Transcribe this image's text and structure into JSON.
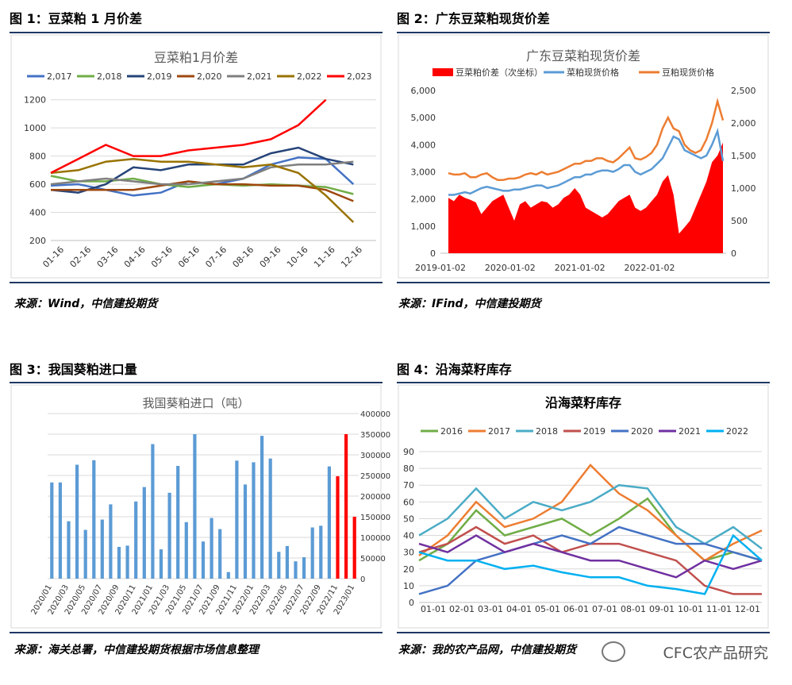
{
  "panels": [
    {
      "fig_label": "图 1：豆菜粕 1 月价差",
      "source": "来源：Wind，中信建投期货"
    },
    {
      "fig_label": "图 2：广东豆菜粕现货价差",
      "source": "来源：IFind，中信建投期货"
    },
    {
      "fig_label": "图 3：我国葵粕进口量",
      "source": "来源：海关总署，中信建投期货根据市场信息整理"
    },
    {
      "fig_label": "图 4：沿海菜籽库存",
      "source": "来源：我的农产品网，中信建投期货"
    }
  ],
  "watermark": "CFC农产品研究",
  "chart_data": [
    {
      "type": "line",
      "title": "豆菜粕1月价差",
      "x_ticks": [
        "01-16",
        "02-16",
        "03-16",
        "04-16",
        "05-16",
        "06-16",
        "07-16",
        "08-16",
        "09-16",
        "10-16",
        "11-16",
        "12-16"
      ],
      "ylim": [
        200,
        1300
      ],
      "y_ticks": [
        200,
        400,
        600,
        800,
        1000,
        1200
      ],
      "grid": true,
      "legend": "top",
      "series": [
        {
          "name": "2,017",
          "color": "#4472c4",
          "values": [
            590,
            600,
            560,
            520,
            540,
            620,
            600,
            640,
            740,
            790,
            780,
            600
          ]
        },
        {
          "name": "2,018",
          "color": "#70ad47",
          "values": [
            660,
            620,
            620,
            640,
            600,
            580,
            600,
            590,
            600,
            590,
            580,
            530
          ]
        },
        {
          "name": "2,019",
          "color": "#264478",
          "values": [
            560,
            540,
            600,
            720,
            700,
            740,
            740,
            740,
            820,
            860,
            780,
            740
          ]
        },
        {
          "name": "2,020",
          "color": "#9e480e",
          "values": [
            560,
            560,
            560,
            560,
            590,
            620,
            600,
            600,
            590,
            590,
            560,
            480
          ]
        },
        {
          "name": "2,021",
          "color": "#7f7f7f",
          "values": [
            600,
            620,
            640,
            620,
            600,
            600,
            620,
            640,
            720,
            740,
            740,
            760
          ]
        },
        {
          "name": "2,022",
          "color": "#997300",
          "values": [
            680,
            700,
            760,
            780,
            760,
            760,
            740,
            720,
            740,
            680,
            520,
            330
          ]
        },
        {
          "name": "2,023",
          "color": "#ff0000",
          "values": [
            680,
            780,
            880,
            800,
            800,
            840,
            860,
            880,
            920,
            1020,
            1200,
            null
          ]
        }
      ]
    },
    {
      "type": "area",
      "title": "广东豆菜粕现货价差",
      "x_ticks": [
        "2019-01-02",
        "2020-01-02",
        "2021-01-02",
        "2022-01-02"
      ],
      "y_left": {
        "ticks": [
          "0",
          "1,000",
          "2,000",
          "3,000",
          "4,000",
          "5,000",
          "6,000"
        ],
        "range": [
          0,
          6000
        ]
      },
      "y_right": {
        "ticks": [
          "0",
          "500",
          "1,000",
          "1,500",
          "2,000",
          "2,500"
        ],
        "range": [
          0,
          2500
        ]
      },
      "legend": "top",
      "series": [
        {
          "name": "豆菜粕价差（次坐标）",
          "color": "#ff0000",
          "axis": "right",
          "values": [
            850,
            800,
            900,
            850,
            820,
            780,
            600,
            700,
            800,
            850,
            900,
            700,
            500,
            750,
            800,
            700,
            750,
            800,
            780,
            700,
            750,
            850,
            900,
            1000,
            900,
            700,
            650,
            600,
            550,
            600,
            700,
            800,
            850,
            900,
            700,
            650,
            700,
            800,
            900,
            1100,
            1200,
            900,
            300,
            400,
            500,
            700,
            900,
            1100,
            1400,
            1500,
            1700
          ]
        },
        {
          "name": "菜粕现货价格",
          "color": "#5b9bd5",
          "axis": "left",
          "values": [
            2150,
            2150,
            2200,
            2250,
            2200,
            2300,
            2400,
            2450,
            2400,
            2350,
            2300,
            2300,
            2350,
            2350,
            2400,
            2450,
            2500,
            2500,
            2400,
            2450,
            2500,
            2600,
            2700,
            2800,
            2800,
            2900,
            2900,
            3000,
            3050,
            3050,
            3000,
            3100,
            3250,
            3250,
            3000,
            2900,
            3000,
            3100,
            3300,
            3500,
            3900,
            4300,
            4200,
            3800,
            3700,
            3600,
            3500,
            3600,
            4000,
            4500,
            3400
          ]
        },
        {
          "name": "豆粕现货价格",
          "color": "#ed7d31",
          "axis": "left",
          "values": [
            2950,
            2900,
            2900,
            2950,
            2800,
            2800,
            2900,
            2950,
            2800,
            2700,
            2700,
            2750,
            2750,
            2800,
            2900,
            2950,
            2900,
            3000,
            2900,
            2950,
            3000,
            3100,
            3200,
            3300,
            3300,
            3400,
            3400,
            3500,
            3500,
            3400,
            3350,
            3500,
            3700,
            3900,
            3500,
            3450,
            3550,
            3700,
            4000,
            4600,
            5000,
            4600,
            4500,
            4000,
            3800,
            3700,
            3800,
            4200,
            4800,
            5600,
            4900
          ]
        }
      ]
    },
    {
      "type": "bar",
      "title": "我国葵粕进口（吨）",
      "x_ticks": [
        "2020/01",
        "2020/03",
        "2020/05",
        "2020/07",
        "2020/09",
        "2020/11",
        "2021/01",
        "2021/03",
        "2021/05",
        "2021/07",
        "2021/09",
        "2021/11",
        "2022/01",
        "2022/03",
        "2022/05",
        "2022/07",
        "2022/09",
        "2022/11",
        "2023/01"
      ],
      "y_ticks": [
        "0",
        "50000",
        "100000",
        "150000",
        "200000",
        "250000",
        "300000",
        "350000",
        "400000"
      ],
      "ylim": [
        0,
        400000
      ],
      "values": [
        233000,
        233000,
        139000,
        276000,
        118000,
        287000,
        143000,
        180000,
        77000,
        80000,
        187000,
        222000,
        326000,
        71000,
        208000,
        273000,
        137000,
        350000,
        90000,
        147000,
        120000,
        16000,
        286000,
        228000,
        282000,
        346000,
        291000,
        65000,
        79000,
        42000,
        52000,
        124000,
        128000,
        272000,
        248000,
        350000,
        150000
      ],
      "highlight_from": 34,
      "colors": {
        "normal": "#5b9bd5",
        "highlight": "#ff0000"
      }
    },
    {
      "type": "line",
      "title": "沿海菜籽库存",
      "x_ticks": [
        "01-01",
        "02-01",
        "03-01",
        "04-01",
        "05-01",
        "06-01",
        "07-01",
        "08-01",
        "09-01",
        "10-01",
        "11-01",
        "12-01"
      ],
      "y_ticks": [
        0,
        10,
        20,
        30,
        40,
        50,
        60,
        70,
        80,
        90
      ],
      "ylim": [
        0,
        90
      ],
      "grid": true,
      "legend": "top",
      "series": [
        {
          "name": "2016",
          "color": "#70ad47",
          "values": [
            25,
            35,
            55,
            40,
            45,
            50,
            40,
            50,
            62,
            40,
            25,
            30,
            25
          ]
        },
        {
          "name": "2017",
          "color": "#ed7d31",
          "values": [
            28,
            40,
            60,
            45,
            50,
            60,
            82,
            65,
            55,
            40,
            25,
            35,
            43
          ]
        },
        {
          "name": "2018",
          "color": "#4bacc6",
          "values": [
            40,
            50,
            68,
            50,
            60,
            55,
            60,
            70,
            68,
            45,
            35,
            45,
            32
          ]
        },
        {
          "name": "2019",
          "color": "#c0504d",
          "values": [
            30,
            35,
            45,
            35,
            40,
            30,
            35,
            35,
            30,
            25,
            10,
            5,
            5
          ]
        },
        {
          "name": "2020",
          "color": "#4472c4",
          "values": [
            5,
            10,
            25,
            30,
            35,
            40,
            35,
            45,
            40,
            35,
            35,
            30,
            25
          ]
        },
        {
          "name": "2021",
          "color": "#7030a0",
          "values": [
            35,
            30,
            40,
            30,
            35,
            30,
            25,
            25,
            20,
            15,
            25,
            20,
            25
          ]
        },
        {
          "name": "2022",
          "color": "#00b0f0",
          "values": [
            30,
            25,
            25,
            20,
            22,
            18,
            15,
            15,
            10,
            8,
            5,
            40,
            25
          ]
        }
      ]
    }
  ]
}
